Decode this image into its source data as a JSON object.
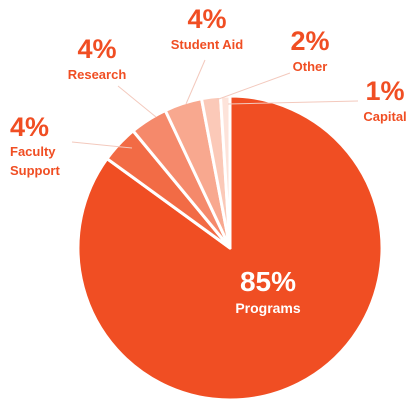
{
  "chart_data": {
    "type": "pie",
    "categories": [
      "Programs",
      "Faculty Support",
      "Research",
      "Student Aid",
      "Other",
      "Capital"
    ],
    "values": [
      85,
      4,
      4,
      4,
      2,
      1
    ],
    "value_labels": [
      "85%",
      "4%",
      "4%",
      "4%",
      "2%",
      "1%"
    ],
    "colors": [
      "#f04e23",
      "#f26b45",
      "#f5896b",
      "#f8a88f",
      "#fbc9b8",
      "#fde3da"
    ]
  }
}
